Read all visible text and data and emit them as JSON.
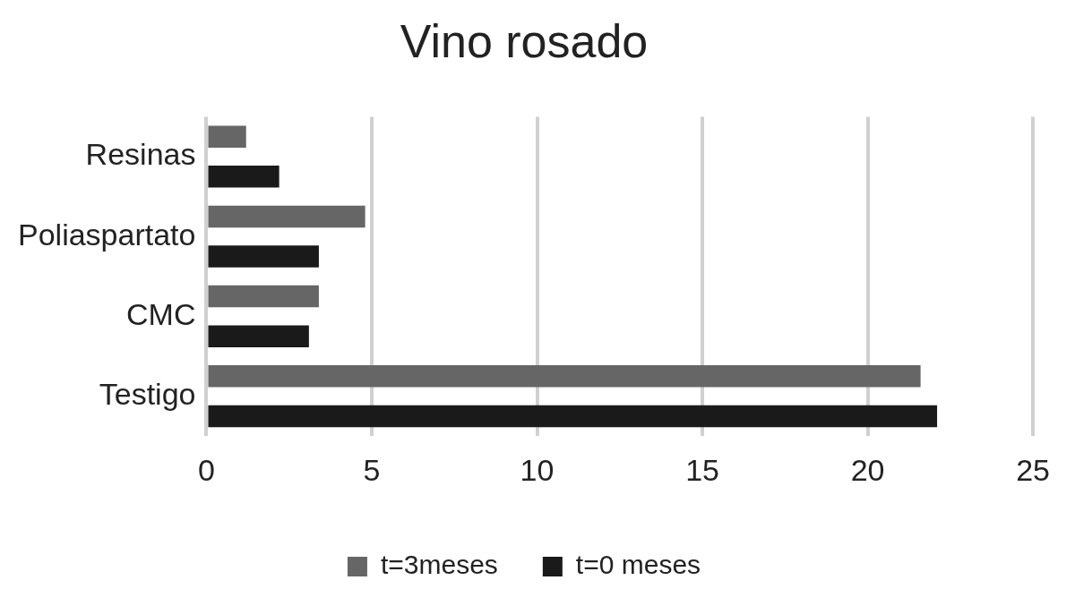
{
  "chart_data": {
    "type": "bar",
    "orientation": "horizontal",
    "title": "Vino rosado",
    "categories": [
      "Resinas",
      "Poliaspartato",
      "CMC",
      "Testigo"
    ],
    "series": [
      {
        "name": "t=3meses",
        "color": "#666666",
        "values": [
          1.2,
          4.8,
          3.4,
          21.6
        ]
      },
      {
        "name": "t=0 meses",
        "color": "#1a1a1a",
        "values": [
          2.2,
          3.4,
          3.1,
          22.1
        ]
      }
    ],
    "xlim": [
      0,
      25
    ],
    "xticks": [
      0,
      5,
      10,
      15,
      20,
      25
    ],
    "grid": "x",
    "legend": "bottom"
  }
}
